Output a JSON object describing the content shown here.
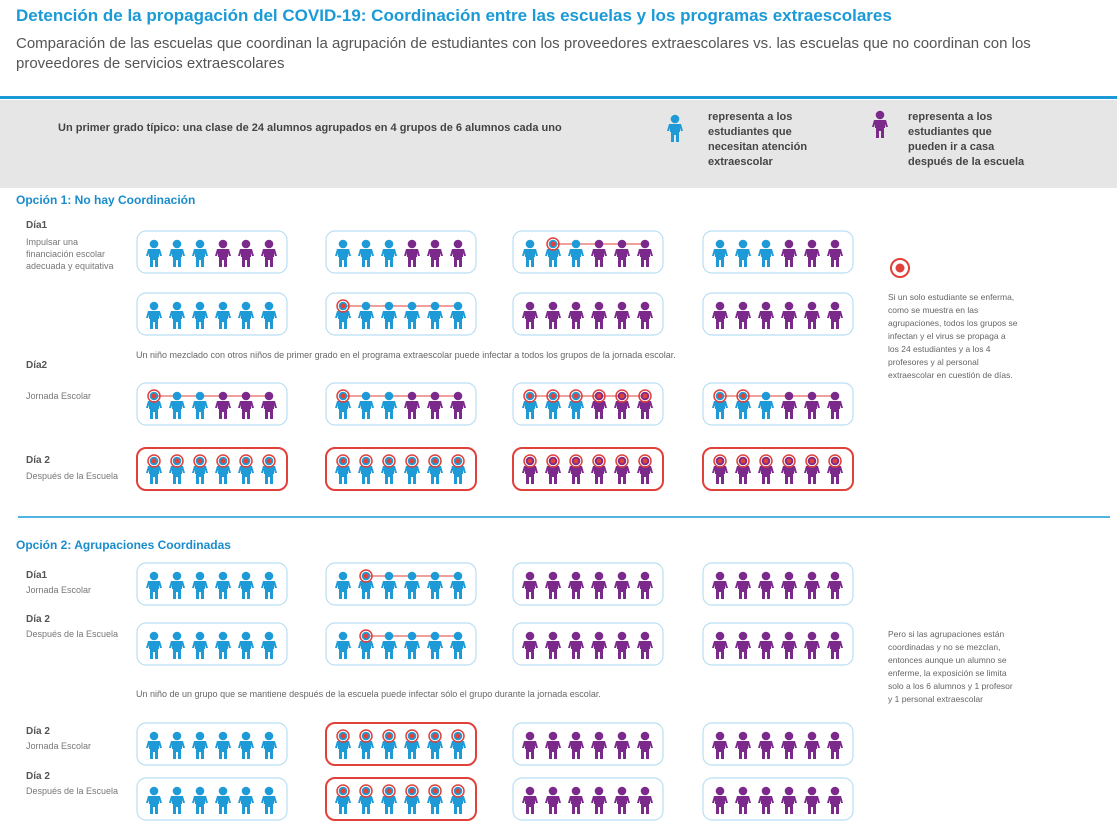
{
  "header": {
    "title": "Detención de la propagación del COVID-19: Coordinación entre las escuelas y los programas extraescolares",
    "subtitle": "Comparación de las escuelas que coordinan la agrupación de estudiantes con los proveedores extraescolares vs. las escuelas que no coordinan con los proveedores de servicios extraescolares"
  },
  "legend": {
    "intro": "Un primer grado típico: una clase de 24 alumnos agrupados en 4 grupos de 6 alumnos cada uno",
    "blue_label": "representa a los estudiantes que necesitan atención extraescolar",
    "purple_label": "representa a los estudiantes que pueden ir a casa después de la escuela"
  },
  "option1": {
    "heading": "Opción 1: No hay Coordinación",
    "labels": [
      {
        "day": "Día1",
        "desc": "Impulsar una financiación escolar adecuada y equitativa"
      },
      {
        "day": "Día2",
        "desc": "Jornada Escolar"
      },
      {
        "day": "Día 2",
        "desc": "Después de la Escuela"
      }
    ],
    "note": "Un niño mezclado con otros niños de primer grado en el programa extraescolar puede infectar a todos los grupos de la jornada escolar.",
    "side_text": "Si un solo estudiante se enferma, como se muestra en las agrupaciones, todos los grupos se infectan y el virus se propaga a los 24 estudiantes y a los 4 profesores y al personal extraescolar en cuestión de días."
  },
  "option2": {
    "heading": "Opción 2: Agrupaciones Coordinadas",
    "labels": [
      {
        "day": "Día1",
        "desc": "Jornada Escolar"
      },
      {
        "day": "Día 2",
        "desc": "Después de la Escuela"
      },
      {
        "day": "Día 2",
        "desc": "Jornada Escolar"
      },
      {
        "day": "Día 2",
        "desc": "Después de la Escuela"
      }
    ],
    "note": "Un niño de un grupo que se mantiene después de la escuela puede infectar sólo el grupo durante la jornada escolar.",
    "side_text": "Pero si las agrupaciones están coordinadas y no se mezclan, entonces aunque un alumno se enferme, la exposición se limita solo a los 6 alumnos y 1 profesor y 1 personal extraescolar"
  }
}
